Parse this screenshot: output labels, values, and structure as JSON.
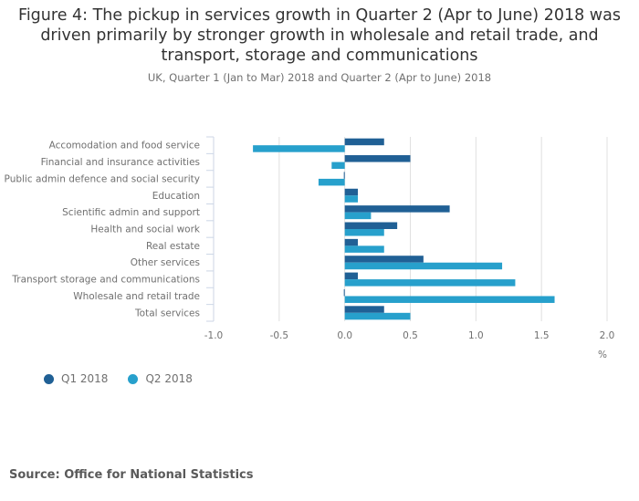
{
  "header": {
    "title_lines": [
      "Figure 4: The pickup in services growth in Quarter 2 (Apr to June) 2018 was",
      "driven primarily by stronger growth in wholesale and retail trade, and",
      "transport, storage and communications"
    ],
    "subtitle": "UK, Quarter 1 (Jan to Mar) 2018 and Quarter 2 (Apr to June) 2018"
  },
  "source": "Source: Office for National Statistics",
  "chart_data": {
    "type": "bar",
    "orientation": "horizontal",
    "title": "Figure 4: The pickup in services growth in Quarter 2 (Apr to June) 2018 was driven primarily by stronger growth in wholesale and retail trade, and transport, storage and communications",
    "subtitle": "UK, Quarter 1 (Jan to Mar) 2018 and Quarter 2 (Apr to June) 2018",
    "categories": [
      "Accomodation and food service",
      "Financial and insurance activities",
      "Public admin defence and social security",
      "Education",
      "Scientific admin and support",
      "Health and social work",
      "Real estate",
      "Other services",
      "Transport storage and communications",
      "Wholesale and retail trade",
      "Total services"
    ],
    "series": [
      {
        "name": "Q1 2018",
        "color": "#206095",
        "values": [
          0.3,
          0.5,
          0.0,
          0.1,
          0.8,
          0.4,
          0.1,
          0.6,
          0.1,
          0.0,
          0.3
        ]
      },
      {
        "name": "Q2 2018",
        "color": "#27a0cc",
        "values": [
          -0.7,
          -0.1,
          -0.2,
          0.1,
          0.2,
          0.3,
          0.3,
          1.2,
          1.3,
          1.6,
          0.5
        ]
      }
    ],
    "xlabel": "%",
    "ylabel": "",
    "xlim": [
      -1.0,
      2.0
    ],
    "xticks": [
      "-1.0",
      "-0.5",
      "0.0",
      "0.5",
      "1.0",
      "1.5",
      "2.0"
    ],
    "grid": true,
    "legend_position": "bottom-left"
  }
}
